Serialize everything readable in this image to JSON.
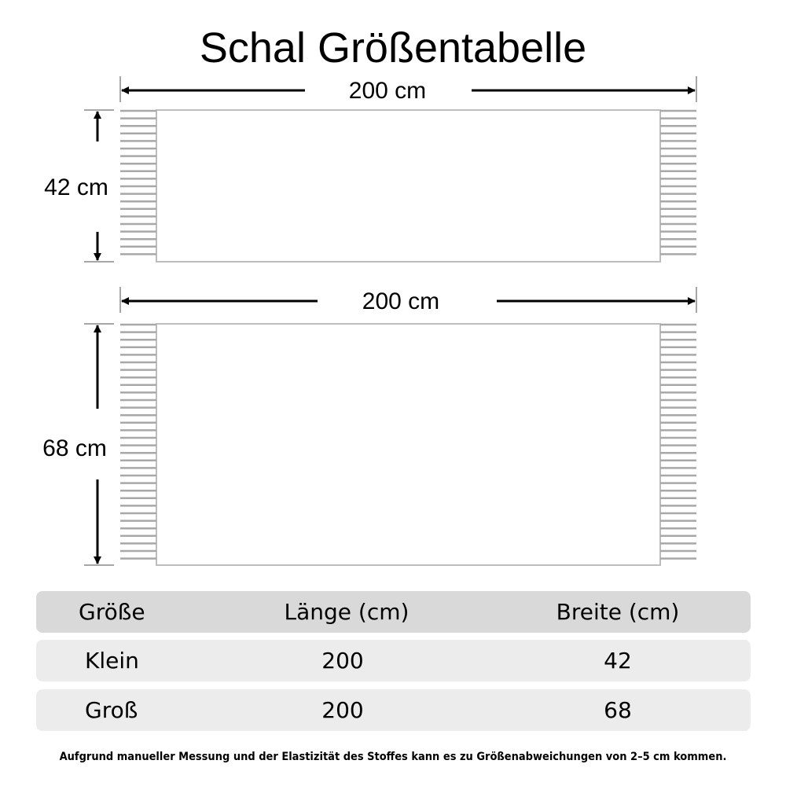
{
  "title": "Schal Größentabelle",
  "scarves": [
    {
      "length_label": "200 cm",
      "width_label": "42 cm",
      "length_cm": 200,
      "width_cm": 42
    },
    {
      "length_label": "200 cm",
      "width_label": "68 cm",
      "length_cm": 200,
      "width_cm": 68
    }
  ],
  "table": {
    "headers": [
      "Größe",
      "Länge (cm)",
      "Breite (cm)"
    ],
    "rows": [
      [
        "Klein",
        "200",
        "42"
      ],
      [
        "Groß",
        "200",
        "68"
      ]
    ]
  },
  "footnote": "Aufgrund manueller Messung und der Elastizität des Stoffes kann es zu Größenabweichungen von 2–5 cm kommen.",
  "colors": {
    "header_bg": "#d9d9d9",
    "row_bg": "#ececec",
    "fringe": "#a8a8a8",
    "outline": "#bdbdbd"
  }
}
